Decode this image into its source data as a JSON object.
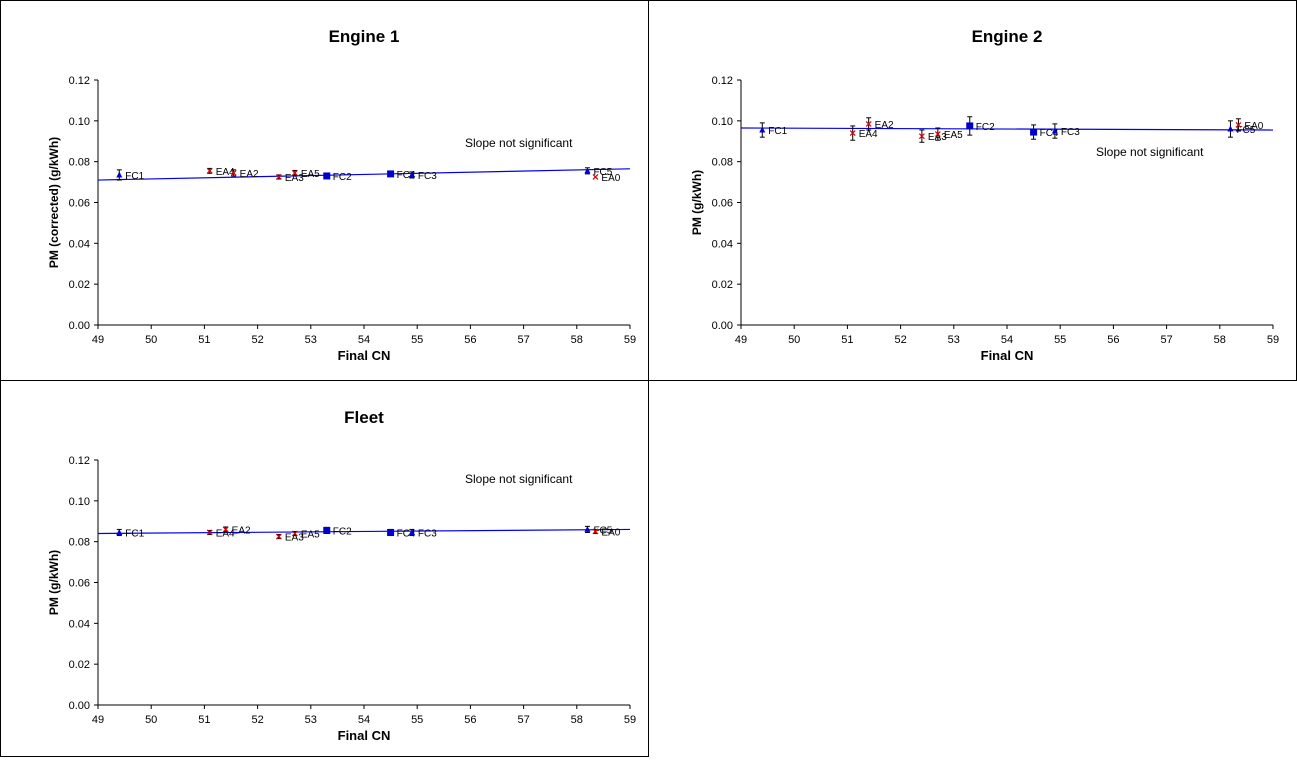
{
  "chart_data": [
    {
      "type": "scatter",
      "title": "Engine 1",
      "xlabel": "Final CN",
      "ylabel": "PM (corrected) (g/kWh)",
      "annotation": "Slope not significant",
      "xlim": [
        49,
        59
      ],
      "ylim": [
        0,
        0.12
      ],
      "xticks": [
        "49",
        "50",
        "51",
        "52",
        "53",
        "54",
        "55",
        "56",
        "57",
        "58",
        "59"
      ],
      "yticks": [
        "0.00",
        "0.02",
        "0.04",
        "0.06",
        "0.08",
        "0.10",
        "0.12"
      ],
      "trendline": {
        "x": [
          49,
          59
        ],
        "y": [
          0.071,
          0.0765
        ]
      },
      "series": [
        {
          "marker": "triangle",
          "color": "#0000cc",
          "points": [
            {
              "label": "FC1",
              "x": 49.4,
              "y": 0.0735,
              "err": 0.0025
            },
            {
              "label": "FC2",
              "x": 53.3,
              "y": 0.073,
              "err": 0
            },
            {
              "label": "FC4",
              "x": 54.5,
              "y": 0.074,
              "err": 0
            },
            {
              "label": "FC3",
              "x": 54.9,
              "y": 0.0735,
              "err": 0.0015
            },
            {
              "label": "FC5",
              "x": 58.2,
              "y": 0.0755,
              "err": 0.0015
            }
          ]
        },
        {
          "marker": "x",
          "color": "#dd0000",
          "points": [
            {
              "label": "EA4",
              "x": 51.1,
              "y": 0.0755,
              "err": 0.0012
            },
            {
              "label": "EA2",
              "x": 51.55,
              "y": 0.0745,
              "err": 0.0015
            },
            {
              "label": "EA3",
              "x": 52.4,
              "y": 0.0725,
              "err": 0.001
            },
            {
              "label": "EA5",
              "x": 52.7,
              "y": 0.0745,
              "err": 0.0012
            },
            {
              "label": "EA0",
              "x": 58.35,
              "y": 0.0725,
              "err": 0
            }
          ]
        }
      ]
    },
    {
      "type": "scatter",
      "title": "Engine 2",
      "xlabel": "Final CN",
      "ylabel": "PM (g/kWh)",
      "annotation": "Slope not significant",
      "xlim": [
        49,
        59
      ],
      "ylim": [
        0,
        0.12
      ],
      "xticks": [
        "49",
        "50",
        "51",
        "52",
        "53",
        "54",
        "55",
        "56",
        "57",
        "58",
        "59"
      ],
      "yticks": [
        "0.00",
        "0.02",
        "0.04",
        "0.06",
        "0.08",
        "0.10",
        "0.12"
      ],
      "trendline": {
        "x": [
          49,
          59
        ],
        "y": [
          0.0965,
          0.0955
        ]
      },
      "series": [
        {
          "marker": "triangle",
          "color": "#0000cc",
          "points": [
            {
              "label": "FC1",
              "x": 49.4,
              "y": 0.0955,
              "err": 0.0035
            },
            {
              "label": "FC2",
              "x": 53.3,
              "y": 0.0975,
              "err": 0.0045
            },
            {
              "label": "FC4",
              "x": 54.5,
              "y": 0.0945,
              "err": 0.0035
            },
            {
              "label": "FC3",
              "x": 54.9,
              "y": 0.095,
              "err": 0.0035
            },
            {
              "label": "FC5",
              "x": 58.2,
              "y": 0.096,
              "err": 0.004
            }
          ]
        },
        {
          "marker": "x",
          "color": "#dd0000",
          "points": [
            {
              "label": "EA4",
              "x": 51.1,
              "y": 0.094,
              "err": 0.0035
            },
            {
              "label": "EA2",
              "x": 51.4,
              "y": 0.0985,
              "err": 0.003
            },
            {
              "label": "EA3",
              "x": 52.4,
              "y": 0.0925,
              "err": 0.003
            },
            {
              "label": "EA5",
              "x": 52.7,
              "y": 0.0935,
              "err": 0.003
            },
            {
              "label": "EA0",
              "x": 58.35,
              "y": 0.098,
              "err": 0.003
            }
          ]
        }
      ]
    },
    {
      "type": "scatter",
      "title": "Fleet",
      "xlabel": "Final CN",
      "ylabel": "PM (g/kWh)",
      "annotation": "Slope not significant",
      "xlim": [
        49,
        59
      ],
      "ylim": [
        0,
        0.12
      ],
      "xticks": [
        "49",
        "50",
        "51",
        "52",
        "53",
        "54",
        "55",
        "56",
        "57",
        "58",
        "59"
      ],
      "yticks": [
        "0.00",
        "0.02",
        "0.04",
        "0.06",
        "0.08",
        "0.10",
        "0.12"
      ],
      "trendline": {
        "x": [
          49,
          59
        ],
        "y": [
          0.084,
          0.086
        ]
      },
      "series": [
        {
          "marker": "triangle",
          "color": "#0000cc",
          "points": [
            {
              "label": "FC1",
              "x": 49.4,
              "y": 0.0845,
              "err": 0.0015
            },
            {
              "label": "FC2",
              "x": 53.3,
              "y": 0.0855,
              "err": 0.0015
            },
            {
              "label": "FC4",
              "x": 54.5,
              "y": 0.0845,
              "err": 0.0015
            },
            {
              "label": "FC3",
              "x": 54.9,
              "y": 0.0845,
              "err": 0.0015
            },
            {
              "label": "FC5",
              "x": 58.2,
              "y": 0.086,
              "err": 0.0015
            }
          ]
        },
        {
          "marker": "x",
          "color": "#dd0000",
          "points": [
            {
              "label": "EA4",
              "x": 51.1,
              "y": 0.0845,
              "err": 0.001
            },
            {
              "label": "EA2",
              "x": 51.4,
              "y": 0.086,
              "err": 0.0012
            },
            {
              "label": "EA3",
              "x": 52.4,
              "y": 0.0825,
              "err": 0.001
            },
            {
              "label": "EA5",
              "x": 52.7,
              "y": 0.084,
              "err": 0.001
            },
            {
              "label": "EA0",
              "x": 58.35,
              "y": 0.085,
              "err": 0.001
            }
          ]
        }
      ]
    }
  ]
}
